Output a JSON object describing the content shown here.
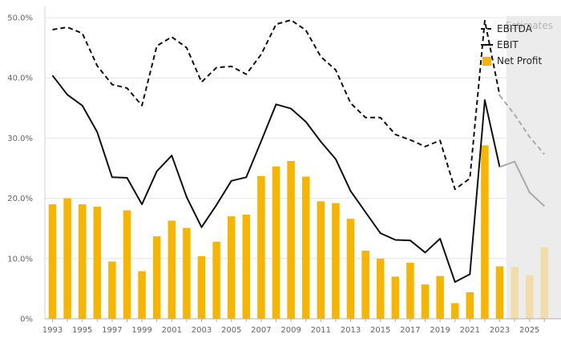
{
  "chart_data": {
    "type": "bar",
    "title": "",
    "xlabel": "",
    "ylabel": "",
    "ylim": [
      0,
      50
    ],
    "y_ticks": [
      "0%",
      "10.0%",
      "20.0%",
      "30.0%",
      "40.0%",
      "50.0%"
    ],
    "x_tick_labels": [
      "1993",
      "1995",
      "1997",
      "1999",
      "2001",
      "2003",
      "2005",
      "2007",
      "2009",
      "2011",
      "2013",
      "2015",
      "2017",
      "2019",
      "2021",
      "2023",
      "2025"
    ],
    "x": [
      1993,
      1994,
      1995,
      1996,
      1997,
      1998,
      1999,
      2000,
      2001,
      2002,
      2003,
      2004,
      2005,
      2006,
      2007,
      2008,
      2009,
      2010,
      2011,
      2012,
      2013,
      2014,
      2015,
      2016,
      2017,
      2018,
      2019,
      2020,
      2021,
      2022,
      2023,
      2024,
      2025,
      2026
    ],
    "estimate_from": 2024,
    "estimates_label": "Estimates",
    "grid": "horizontal",
    "legend_position": "top-right",
    "series": [
      {
        "name": "EBITDA",
        "kind": "line",
        "style": "dashed",
        "color": "#111111",
        "estimate_color": "#aaaaaa",
        "values": [
          48.0,
          48.4,
          47.4,
          42.0,
          38.9,
          38.3,
          35.4,
          45.3,
          46.8,
          45.0,
          39.3,
          41.7,
          41.9,
          40.6,
          43.9,
          48.9,
          49.6,
          47.9,
          43.5,
          41.3,
          35.8,
          33.4,
          33.4,
          30.6,
          29.7,
          28.6,
          29.6,
          21.5,
          23.3,
          49.5,
          37.1,
          33.9,
          30.2,
          27.3
        ]
      },
      {
        "name": "EBIT",
        "kind": "line",
        "style": "solid",
        "color": "#111111",
        "estimate_color": "#aaaaaa",
        "values": [
          40.4,
          37.2,
          35.4,
          31.0,
          23.5,
          23.4,
          19.0,
          24.5,
          27.1,
          20.2,
          15.2,
          18.9,
          22.9,
          23.5,
          29.5,
          35.6,
          34.9,
          32.7,
          29.4,
          26.5,
          21.2,
          17.7,
          14.2,
          13.1,
          13.0,
          11.0,
          13.3,
          6.1,
          7.4,
          36.3,
          25.2,
          26.1,
          21.0,
          18.7
        ]
      },
      {
        "name": "Net Profit",
        "kind": "bar",
        "color": "#f7b500",
        "estimate_color": "#f2dcaa",
        "values": [
          19.0,
          20.0,
          19.0,
          18.6,
          9.5,
          18.0,
          7.9,
          13.7,
          16.3,
          15.1,
          10.4,
          12.8,
          17.0,
          17.3,
          23.7,
          25.3,
          26.2,
          23.6,
          19.5,
          19.2,
          16.6,
          11.3,
          10.0,
          7.0,
          9.3,
          5.7,
          7.1,
          2.6,
          4.4,
          28.8,
          8.7,
          8.6,
          7.2,
          11.9
        ]
      }
    ]
  }
}
